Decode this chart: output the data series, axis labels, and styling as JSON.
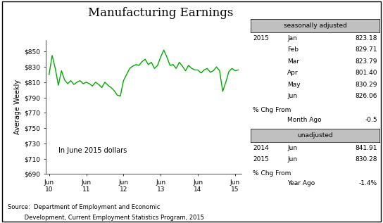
{
  "title": "Manufacturing Earnings",
  "ylabel": "Average Weekly",
  "xlabel_ticks": [
    "Jun\n10",
    "Jun\n11",
    "Jun\n12",
    "Jun\n13",
    "Jun\n14",
    "Jun\n15"
  ],
  "ylim": [
    690,
    865
  ],
  "yticks": [
    690,
    710,
    730,
    750,
    770,
    790,
    810,
    830,
    850
  ],
  "line_color": "#00aa00",
  "annotation": "In June 2015 dollars",
  "source_line1": "Source:  Department of Employment and Economic",
  "source_line2": "         Development, Current Employment Statistics Program, 2015",
  "seasonally_adjusted_label": "seasonally adjusted",
  "unadjusted_label": "unadjusted",
  "sa_year": "2015",
  "sa_months": [
    "Jan",
    "Feb",
    "Mar",
    "Apr",
    "May",
    "Jun"
  ],
  "sa_values": [
    "823.18",
    "829.71",
    "823.79",
    "801.40",
    "830.29",
    "826.06"
  ],
  "sa_pct_label1": "% Chg From",
  "sa_pct_label2": "Month Ago",
  "sa_pct_value": "-0.5",
  "unadj_years": [
    "2014",
    "2015"
  ],
  "unadj_months": [
    "Jun",
    "Jun"
  ],
  "unadj_values": [
    "841.91",
    "830.28"
  ],
  "unadj_pct_label1": "% Chg From",
  "unadj_pct_label2": "Year Ago",
  "unadj_pct_value": "-1.4%",
  "line_x": [
    0,
    1,
    2,
    3,
    4,
    5,
    6,
    7,
    8,
    9,
    10,
    11,
    12,
    13,
    14,
    15,
    16,
    17,
    18,
    19,
    20,
    21,
    22,
    23,
    24,
    25,
    26,
    27,
    28,
    29,
    30,
    31,
    32,
    33,
    34,
    35,
    36,
    37,
    38,
    39,
    40,
    41,
    42,
    43,
    44,
    45,
    46,
    47,
    48,
    49,
    50,
    51,
    52,
    53,
    54,
    55,
    56,
    57,
    58,
    59,
    60,
    61
  ],
  "line_y": [
    820,
    845,
    828,
    806,
    825,
    813,
    808,
    812,
    807,
    810,
    812,
    808,
    810,
    808,
    805,
    810,
    807,
    803,
    810,
    806,
    803,
    799,
    793,
    792,
    812,
    820,
    828,
    831,
    833,
    832,
    837,
    840,
    833,
    836,
    828,
    832,
    843,
    852,
    843,
    832,
    833,
    828,
    836,
    831,
    825,
    832,
    828,
    826,
    826,
    822,
    826,
    828,
    823,
    825,
    830,
    825,
    798,
    810,
    824,
    828,
    825,
    826
  ]
}
